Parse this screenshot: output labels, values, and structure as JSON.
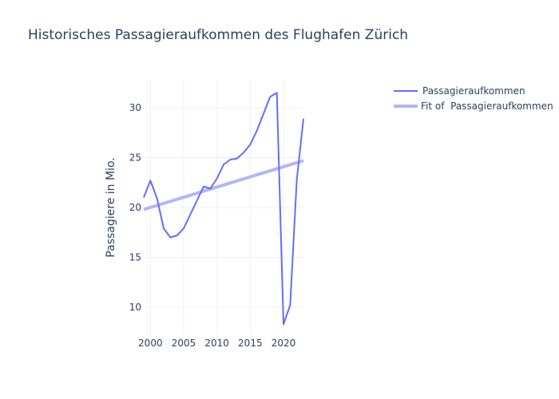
{
  "chart_data": {
    "type": "line",
    "title": "Historisches Passagieraufkommen des Flughafen Zürich",
    "xlabel": "",
    "ylabel": "Passagiere in Mio.",
    "xlim": [
      1999,
      2023
    ],
    "ylim": [
      7.2,
      32.8
    ],
    "x_ticks": [
      2000,
      2005,
      2010,
      2015,
      2020
    ],
    "y_ticks": [
      10,
      15,
      20,
      25,
      30
    ],
    "grid": true,
    "legend_position": "top-right",
    "series": [
      {
        "name": "Passagieraufkommen",
        "color": "#636efa",
        "x": [
          1999,
          2000,
          2001,
          2002,
          2003,
          2004,
          2005,
          2006,
          2007,
          2008,
          2009,
          2010,
          2011,
          2012,
          2013,
          2014,
          2015,
          2016,
          2017,
          2018,
          2019,
          2020,
          2021,
          2022,
          2023
        ],
        "y": [
          21.0,
          22.7,
          20.9,
          17.9,
          17.0,
          17.2,
          17.9,
          19.3,
          20.7,
          22.1,
          21.9,
          22.9,
          24.3,
          24.8,
          24.9,
          25.5,
          26.3,
          27.7,
          29.4,
          31.1,
          31.5,
          8.3,
          10.2,
          22.8,
          28.9
        ]
      },
      {
        "name": "Fit of  Passagieraufkommen",
        "color": "#b0b5fc",
        "x": [
          1999,
          2023
        ],
        "y": [
          19.8,
          24.7
        ]
      }
    ]
  }
}
